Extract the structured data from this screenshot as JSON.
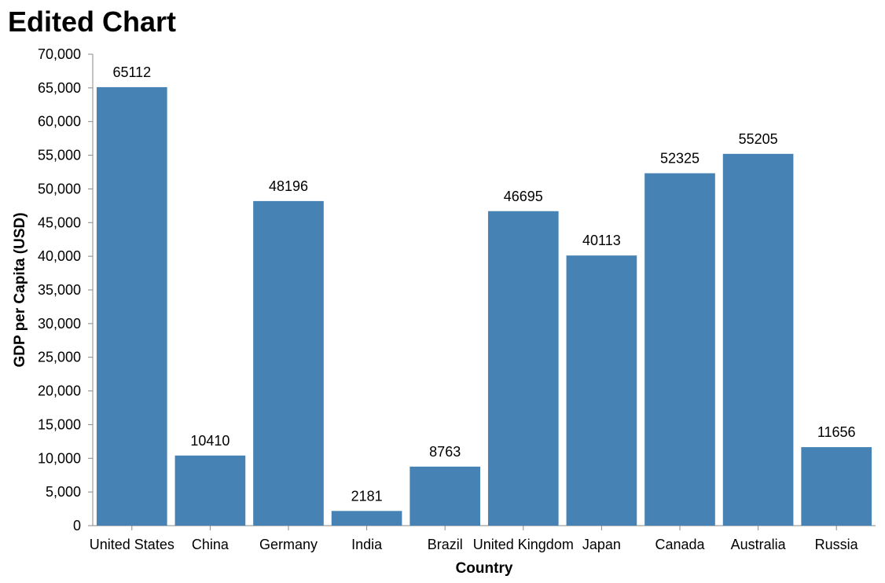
{
  "chart_data": {
    "type": "bar",
    "title": "Edited Chart",
    "xlabel": "Country",
    "ylabel": "GDP per Capita (USD)",
    "categories": [
      "United States",
      "China",
      "Germany",
      "India",
      "Brazil",
      "United Kingdom",
      "Japan",
      "Canada",
      "Australia",
      "Russia"
    ],
    "values": [
      65112,
      10410,
      48196,
      2181,
      8763,
      46695,
      40113,
      52325,
      55205,
      11656
    ],
    "value_labels": [
      "65112",
      "10410",
      "48196",
      "2181",
      "8763",
      "46695",
      "40113",
      "52325",
      "55205",
      "11656"
    ],
    "ylim": [
      0,
      70000
    ],
    "yticks": [
      0,
      5000,
      10000,
      15000,
      20000,
      25000,
      30000,
      35000,
      40000,
      45000,
      50000,
      55000,
      60000,
      65000,
      70000
    ],
    "ytick_labels": [
      "0",
      "5,000",
      "10,000",
      "15,000",
      "20,000",
      "25,000",
      "30,000",
      "35,000",
      "40,000",
      "45,000",
      "50,000",
      "55,000",
      "60,000",
      "65,000",
      "70,000"
    ],
    "grid": false,
    "bar_color": "#4682b4",
    "axis_color": "#888888"
  }
}
